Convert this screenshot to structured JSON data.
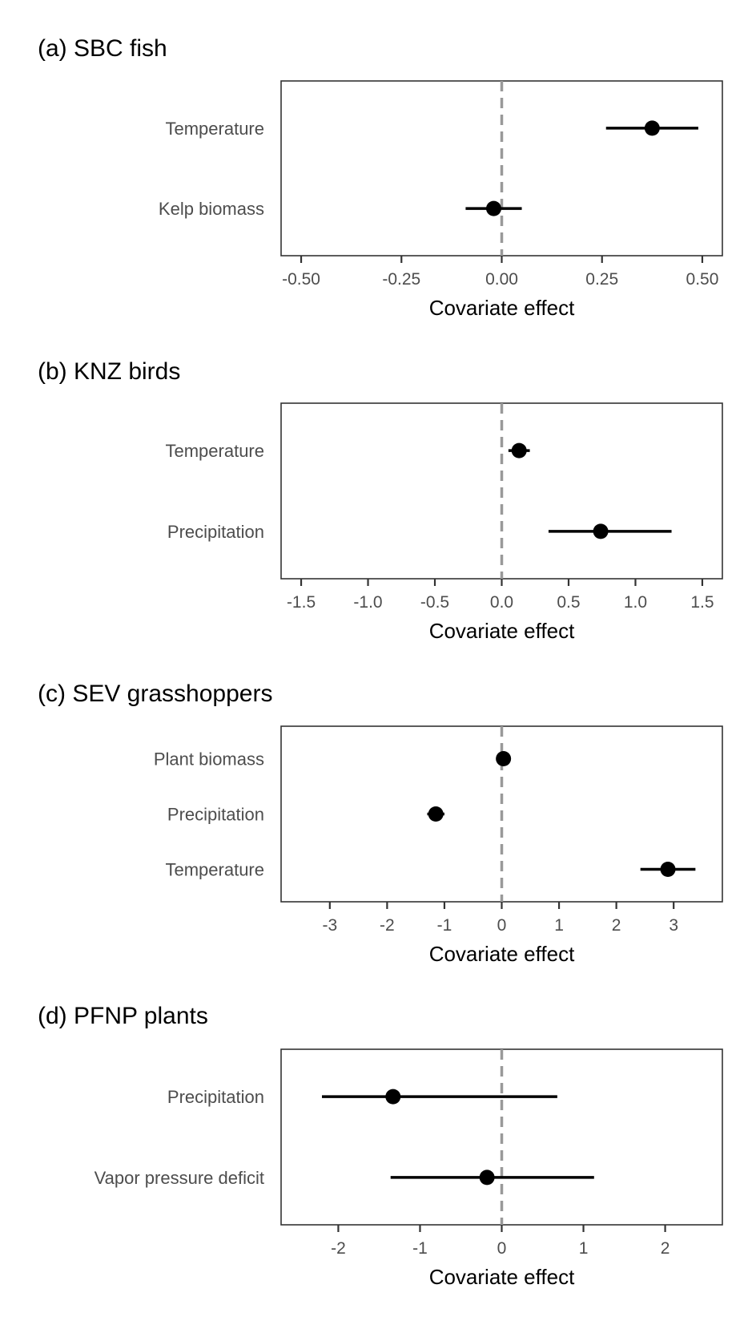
{
  "chart_data": [
    {
      "type": "scatter",
      "title": "(a) SBC fish",
      "xlabel": "Covariate effect",
      "xlim": [
        -0.55,
        0.55
      ],
      "xticks": [
        -0.5,
        -0.25,
        0,
        0.25,
        0.5
      ],
      "xtick_labels": [
        "-0.50",
        "-0.25",
        "0.00",
        "0.25",
        "0.50"
      ],
      "zero_line": 0,
      "categories": [
        "Temperature",
        "Kelp biomass"
      ],
      "estimates": [
        0.375,
        -0.02
      ],
      "lower": [
        0.26,
        -0.09
      ],
      "upper": [
        0.49,
        0.05
      ]
    },
    {
      "type": "scatter",
      "title": "(b) KNZ birds",
      "xlabel": "Covariate effect",
      "xlim": [
        -1.65,
        1.65
      ],
      "xticks": [
        -1.5,
        -1.0,
        -0.5,
        0,
        0.5,
        1.0,
        1.5
      ],
      "xtick_labels": [
        "-1.5",
        "-1.0",
        "-0.5",
        "0.0",
        "0.5",
        "1.0",
        "1.5"
      ],
      "zero_line": 0,
      "categories": [
        "Temperature",
        "Precipitation"
      ],
      "estimates": [
        0.13,
        0.74
      ],
      "lower": [
        0.05,
        0.35
      ],
      "upper": [
        0.21,
        1.27
      ]
    },
    {
      "type": "scatter",
      "title": "(c) SEV grasshoppers",
      "xlabel": "Covariate effect",
      "xlim": [
        -3.85,
        3.85
      ],
      "xticks": [
        -3,
        -2,
        -1,
        0,
        1,
        2,
        3
      ],
      "xtick_labels": [
        "-3",
        "-2",
        "-1",
        "0",
        "1",
        "2",
        "3"
      ],
      "zero_line": 0,
      "categories": [
        "Plant biomass",
        "Precipitation",
        "Temperature"
      ],
      "estimates": [
        0.03,
        -1.15,
        2.9
      ],
      "lower": [
        0.0,
        -1.3,
        2.42
      ],
      "upper": [
        0.06,
        -1.0,
        3.38
      ]
    },
    {
      "type": "scatter",
      "title": "(d) PFNP plants",
      "xlabel": "Covariate effect",
      "xlim": [
        -2.7,
        2.7
      ],
      "xticks": [
        -2,
        -1,
        0,
        1,
        2
      ],
      "xtick_labels": [
        "-2",
        "-1",
        "0",
        "1",
        "2"
      ],
      "zero_line": 0,
      "categories": [
        "Precipitation",
        "Vapor pressure deficit"
      ],
      "estimates": [
        -1.33,
        -0.18
      ],
      "lower": [
        -2.2,
        -1.36
      ],
      "upper": [
        0.68,
        1.13
      ]
    }
  ]
}
